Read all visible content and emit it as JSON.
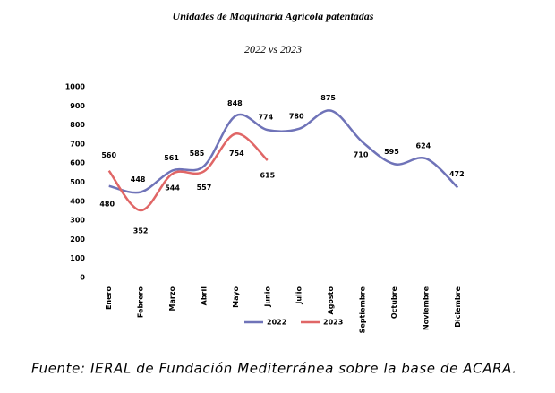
{
  "chart_data": {
    "type": "line",
    "title": "Unidades de Maquinaria Agrícola patentadas",
    "subtitle": "2022 vs 2023",
    "source": "Fuente: IERAL de Fundación Mediterránea sobre la base de ACARA.",
    "categories": [
      "Enero",
      "Febrero",
      "Marzo",
      "Abril",
      "Mayo",
      "Junio",
      "Julio",
      "Agosto",
      "Septiembre",
      "Octubre",
      "Noviembre",
      "Diciembre"
    ],
    "series": [
      {
        "name": "2022",
        "color": "#6f73b8",
        "values": [
          480,
          448,
          561,
          585,
          848,
          774,
          780,
          875,
          710,
          595,
          624,
          472
        ]
      },
      {
        "name": "2023",
        "color": "#e06666",
        "values": [
          560,
          352,
          544,
          557,
          754,
          615,
          null,
          null,
          null,
          null,
          null,
          null
        ]
      }
    ],
    "ylim": [
      0,
      1000
    ],
    "yticks": [
      0,
      100,
      200,
      300,
      400,
      500,
      600,
      700,
      800,
      900,
      1000
    ],
    "grid": false,
    "legend": "bottom",
    "smooth": true
  }
}
